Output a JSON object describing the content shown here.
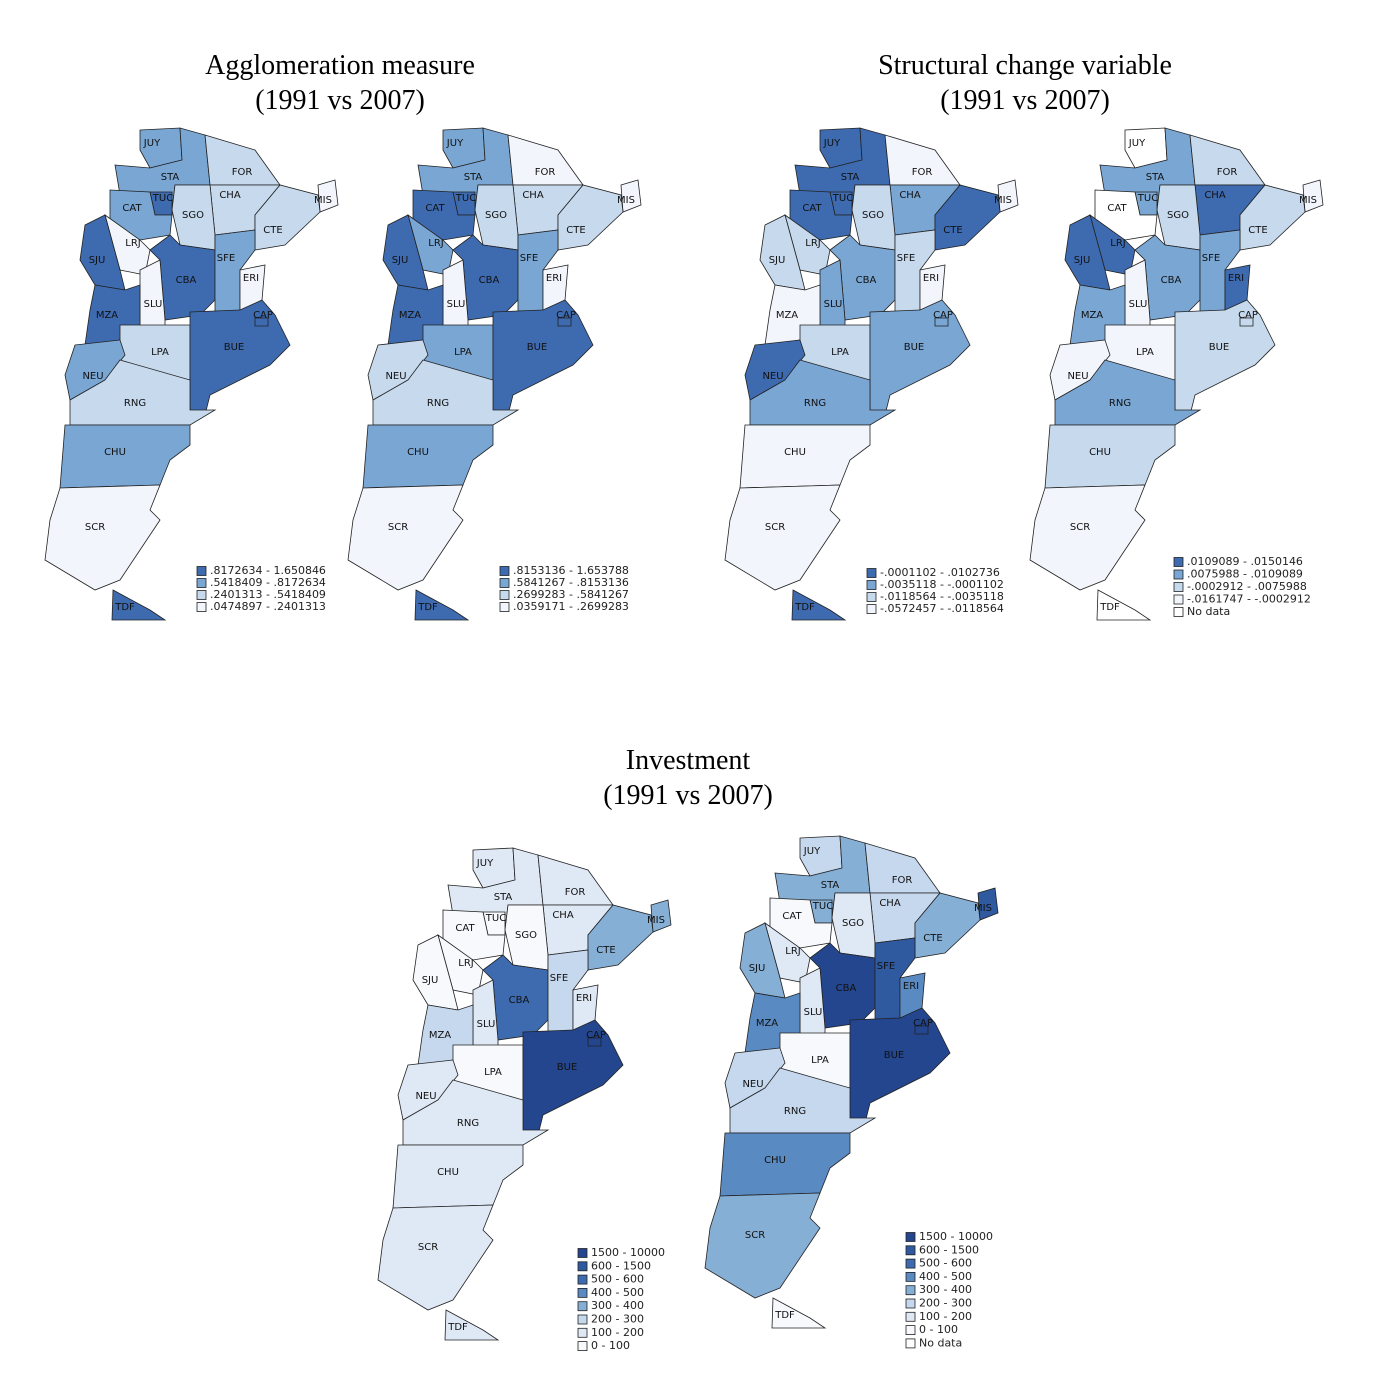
{
  "titles": [
    {
      "name": "Agglomeration measure",
      "period": "(1991 vs 2007)"
    },
    {
      "name": "Structural change variable",
      "period": "(1991 vs 2007)"
    },
    {
      "name": "Investment",
      "period": "(1991 vs 2007)"
    }
  ],
  "maps": [
    {
      "legend": [
        {
          "label": ".8172634 - 1.650846",
          "color": "#3e6bb0"
        },
        {
          "label": ".5418409 - .8172634",
          "color": "#7aa6d3"
        },
        {
          "label": ".2401313 - .5418409",
          "color": "#c6d9ed"
        },
        {
          "label": ".0474897 - .2401313",
          "color": "#f2f5fc"
        }
      ],
      "regions": [
        {
          "code": "JUY",
          "color": "#7aa6d3"
        },
        {
          "code": "STA",
          "color": "#7aa6d3"
        },
        {
          "code": "FOR",
          "color": "#c6d9ed"
        },
        {
          "code": "CHA",
          "color": "#c6d9ed"
        },
        {
          "code": "MIS",
          "color": "#f2f5fc"
        },
        {
          "code": "CTE",
          "color": "#c6d9ed"
        },
        {
          "code": "SGO",
          "color": "#c6d9ed"
        },
        {
          "code": "TUC",
          "color": "#3e6bb0"
        },
        {
          "code": "CAT",
          "color": "#7aa6d3"
        },
        {
          "code": "LRJ",
          "color": "#f2f5fc"
        },
        {
          "code": "SJU",
          "color": "#3e6bb0"
        },
        {
          "code": "CBA",
          "color": "#3e6bb0"
        },
        {
          "code": "SFE",
          "color": "#7aa6d3"
        },
        {
          "code": "ERI",
          "color": "#f2f5fc"
        },
        {
          "code": "SLU",
          "color": "#f2f5fc"
        },
        {
          "code": "MZA",
          "color": "#3e6bb0"
        },
        {
          "code": "LPA",
          "color": "#c6d9ed"
        },
        {
          "code": "BUE",
          "color": "#3e6bb0"
        },
        {
          "code": "CAP",
          "color": "#3e6bb0"
        },
        {
          "code": "NEU",
          "color": "#7aa6d3"
        },
        {
          "code": "RNG",
          "color": "#c6d9ed"
        },
        {
          "code": "CHU",
          "color": "#7aa6d3"
        },
        {
          "code": "SCR",
          "color": "#f2f5fc"
        },
        {
          "code": "TDF",
          "color": "#3e6bb0"
        }
      ]
    },
    {
      "legend": [
        {
          "label": ".8153136 - 1.653788",
          "color": "#3e6bb0"
        },
        {
          "label": ".5841267 - .8153136",
          "color": "#7aa6d3"
        },
        {
          "label": ".2699283 - .5841267",
          "color": "#c6d9ed"
        },
        {
          "label": ".0359171 - .2699283",
          "color": "#f2f5fc"
        }
      ],
      "regions": [
        {
          "code": "JUY",
          "color": "#7aa6d3"
        },
        {
          "code": "STA",
          "color": "#7aa6d3"
        },
        {
          "code": "FOR",
          "color": "#f2f5fc"
        },
        {
          "code": "CHA",
          "color": "#c6d9ed"
        },
        {
          "code": "MIS",
          "color": "#f2f5fc"
        },
        {
          "code": "CTE",
          "color": "#c6d9ed"
        },
        {
          "code": "SGO",
          "color": "#c6d9ed"
        },
        {
          "code": "TUC",
          "color": "#3e6bb0"
        },
        {
          "code": "CAT",
          "color": "#3e6bb0"
        },
        {
          "code": "LRJ",
          "color": "#7aa6d3"
        },
        {
          "code": "SJU",
          "color": "#3e6bb0"
        },
        {
          "code": "CBA",
          "color": "#3e6bb0"
        },
        {
          "code": "SFE",
          "color": "#7aa6d3"
        },
        {
          "code": "ERI",
          "color": "#f2f5fc"
        },
        {
          "code": "SLU",
          "color": "#f2f5fc"
        },
        {
          "code": "MZA",
          "color": "#3e6bb0"
        },
        {
          "code": "LPA",
          "color": "#7aa6d3"
        },
        {
          "code": "BUE",
          "color": "#3e6bb0"
        },
        {
          "code": "CAP",
          "color": "#3e6bb0"
        },
        {
          "code": "NEU",
          "color": "#c6d9ed"
        },
        {
          "code": "RNG",
          "color": "#c6d9ed"
        },
        {
          "code": "CHU",
          "color": "#7aa6d3"
        },
        {
          "code": "SCR",
          "color": "#f2f5fc"
        },
        {
          "code": "TDF",
          "color": "#3e6bb0"
        }
      ]
    },
    {
      "legend": [
        {
          "label": "-.0001102 - .0102736",
          "color": "#3e6bb0"
        },
        {
          "label": "-.0035118 - -.0001102",
          "color": "#7aa6d3"
        },
        {
          "label": "-.0118564 - -.0035118",
          "color": "#c6d9ed"
        },
        {
          "label": "-.0572457 - -.0118564",
          "color": "#f2f5fc"
        }
      ],
      "regions": [
        {
          "code": "JUY",
          "color": "#3e6bb0"
        },
        {
          "code": "STA",
          "color": "#3e6bb0"
        },
        {
          "code": "FOR",
          "color": "#f2f5fc"
        },
        {
          "code": "CHA",
          "color": "#7aa6d3"
        },
        {
          "code": "MIS",
          "color": "#f2f5fc"
        },
        {
          "code": "CTE",
          "color": "#3e6bb0"
        },
        {
          "code": "SGO",
          "color": "#c6d9ed"
        },
        {
          "code": "TUC",
          "color": "#3e6bb0"
        },
        {
          "code": "CAT",
          "color": "#3e6bb0"
        },
        {
          "code": "LRJ",
          "color": "#c6d9ed"
        },
        {
          "code": "SJU",
          "color": "#c6d9ed"
        },
        {
          "code": "CBA",
          "color": "#7aa6d3"
        },
        {
          "code": "SFE",
          "color": "#c6d9ed"
        },
        {
          "code": "ERI",
          "color": "#f2f5fc"
        },
        {
          "code": "SLU",
          "color": "#7aa6d3"
        },
        {
          "code": "MZA",
          "color": "#f2f5fc"
        },
        {
          "code": "LPA",
          "color": "#c6d9ed"
        },
        {
          "code": "BUE",
          "color": "#7aa6d3"
        },
        {
          "code": "CAP",
          "color": "#7aa6d3"
        },
        {
          "code": "NEU",
          "color": "#3e6bb0"
        },
        {
          "code": "RNG",
          "color": "#7aa6d3"
        },
        {
          "code": "CHU",
          "color": "#f2f5fc"
        },
        {
          "code": "SCR",
          "color": "#f2f5fc"
        },
        {
          "code": "TDF",
          "color": "#3e6bb0"
        }
      ]
    },
    {
      "legend": [
        {
          "label": ".0109089 - .0150146",
          "color": "#3e6bb0"
        },
        {
          "label": ".0075988 - .0109089",
          "color": "#7aa6d3"
        },
        {
          "label": "-.0002912 - .0075988",
          "color": "#c6d9ed"
        },
        {
          "label": "-.0161747 - -.0002912",
          "color": "#f2f5fc"
        },
        {
          "label": "No data",
          "color": "#ffffff"
        }
      ],
      "regions": [
        {
          "code": "JUY",
          "color": "#ffffff"
        },
        {
          "code": "STA",
          "color": "#7aa6d3"
        },
        {
          "code": "FOR",
          "color": "#c6d9ed"
        },
        {
          "code": "CHA",
          "color": "#3e6bb0"
        },
        {
          "code": "MIS",
          "color": "#f2f5fc"
        },
        {
          "code": "CTE",
          "color": "#c6d9ed"
        },
        {
          "code": "SGO",
          "color": "#c6d9ed"
        },
        {
          "code": "TUC",
          "color": "#7aa6d3"
        },
        {
          "code": "CAT",
          "color": "#ffffff"
        },
        {
          "code": "LRJ",
          "color": "#3e6bb0"
        },
        {
          "code": "SJU",
          "color": "#3e6bb0"
        },
        {
          "code": "CBA",
          "color": "#7aa6d3"
        },
        {
          "code": "SFE",
          "color": "#7aa6d3"
        },
        {
          "code": "ERI",
          "color": "#3e6bb0"
        },
        {
          "code": "SLU",
          "color": "#f2f5fc"
        },
        {
          "code": "MZA",
          "color": "#7aa6d3"
        },
        {
          "code": "LPA",
          "color": "#f2f5fc"
        },
        {
          "code": "BUE",
          "color": "#c6d9ed"
        },
        {
          "code": "CAP",
          "color": "#c6d9ed"
        },
        {
          "code": "NEU",
          "color": "#f2f5fc"
        },
        {
          "code": "RNG",
          "color": "#7aa6d3"
        },
        {
          "code": "CHU",
          "color": "#c6d9ed"
        },
        {
          "code": "SCR",
          "color": "#f2f5fc"
        },
        {
          "code": "TDF",
          "color": "#ffffff"
        }
      ]
    },
    {
      "legend": [
        {
          "label": "1500 - 10000",
          "color": "#24468f"
        },
        {
          "label": "600 - 1500",
          "color": "#2f5a9f"
        },
        {
          "label": "500 - 600",
          "color": "#3e6bb0"
        },
        {
          "label": "400 - 500",
          "color": "#5a8ac2"
        },
        {
          "label": "300 - 400",
          "color": "#86afd6"
        },
        {
          "label": "200 - 300",
          "color": "#c6d8ee"
        },
        {
          "label": "100 - 200",
          "color": "#dfe8f5"
        },
        {
          "label": "0 - 100",
          "color": "#f7f9fd"
        }
      ],
      "regions": [
        {
          "code": "JUY",
          "color": "#dfe8f5"
        },
        {
          "code": "STA",
          "color": "#dfe8f5"
        },
        {
          "code": "FOR",
          "color": "#dfe8f5"
        },
        {
          "code": "CHA",
          "color": "#dfe8f5"
        },
        {
          "code": "MIS",
          "color": "#86afd6"
        },
        {
          "code": "CTE",
          "color": "#86afd6"
        },
        {
          "code": "SGO",
          "color": "#f7f9fd"
        },
        {
          "code": "TUC",
          "color": "#f7f9fd"
        },
        {
          "code": "CAT",
          "color": "#f7f9fd"
        },
        {
          "code": "LRJ",
          "color": "#f7f9fd"
        },
        {
          "code": "SJU",
          "color": "#f7f9fd"
        },
        {
          "code": "CBA",
          "color": "#3e6bb0"
        },
        {
          "code": "SFE",
          "color": "#c6d8ee"
        },
        {
          "code": "ERI",
          "color": "#dfe8f5"
        },
        {
          "code": "SLU",
          "color": "#dfe8f5"
        },
        {
          "code": "MZA",
          "color": "#c6d8ee"
        },
        {
          "code": "LPA",
          "color": "#f7f9fd"
        },
        {
          "code": "BUE",
          "color": "#24468f"
        },
        {
          "code": "CAP",
          "color": "#24468f"
        },
        {
          "code": "NEU",
          "color": "#dfe8f5"
        },
        {
          "code": "RNG",
          "color": "#dfe8f5"
        },
        {
          "code": "CHU",
          "color": "#dfe8f5"
        },
        {
          "code": "SCR",
          "color": "#dfe8f5"
        },
        {
          "code": "TDF",
          "color": "#dfe8f5"
        }
      ]
    },
    {
      "legend": [
        {
          "label": "1500 - 10000",
          "color": "#24468f"
        },
        {
          "label": "600 - 1500",
          "color": "#2f5a9f"
        },
        {
          "label": "500 - 600",
          "color": "#3e6bb0"
        },
        {
          "label": "400 - 500",
          "color": "#5a8ac2"
        },
        {
          "label": "300 - 400",
          "color": "#86afd6"
        },
        {
          "label": "200 - 300",
          "color": "#c6d8ee"
        },
        {
          "label": "100 - 200",
          "color": "#dfe8f5"
        },
        {
          "label": "0 - 100",
          "color": "#f7f9fd"
        },
        {
          "label": "No data",
          "color": "#ffffff"
        }
      ],
      "regions": [
        {
          "code": "JUY",
          "color": "#c6d8ee"
        },
        {
          "code": "STA",
          "color": "#86afd6"
        },
        {
          "code": "FOR",
          "color": "#c6d8ee"
        },
        {
          "code": "CHA",
          "color": "#c6d8ee"
        },
        {
          "code": "MIS",
          "color": "#2f5a9f"
        },
        {
          "code": "CTE",
          "color": "#86afd6"
        },
        {
          "code": "SGO",
          "color": "#dfe8f5"
        },
        {
          "code": "TUC",
          "color": "#86afd6"
        },
        {
          "code": "CAT",
          "color": "#f7f9fd"
        },
        {
          "code": "LRJ",
          "color": "#dfe8f5"
        },
        {
          "code": "SJU",
          "color": "#86afd6"
        },
        {
          "code": "CBA",
          "color": "#24468f"
        },
        {
          "code": "SFE",
          "color": "#2f5a9f"
        },
        {
          "code": "ERI",
          "color": "#5a8ac2"
        },
        {
          "code": "SLU",
          "color": "#dfe8f5"
        },
        {
          "code": "MZA",
          "color": "#5a8ac2"
        },
        {
          "code": "LPA",
          "color": "#f7f9fd"
        },
        {
          "code": "BUE",
          "color": "#24468f"
        },
        {
          "code": "CAP",
          "color": "#24468f"
        },
        {
          "code": "NEU",
          "color": "#c6d8ee"
        },
        {
          "code": "RNG",
          "color": "#c6d8ee"
        },
        {
          "code": "CHU",
          "color": "#5a8ac2"
        },
        {
          "code": "SCR",
          "color": "#86afd6"
        },
        {
          "code": "TDF",
          "color": "#f7f9fd"
        }
      ]
    }
  ]
}
